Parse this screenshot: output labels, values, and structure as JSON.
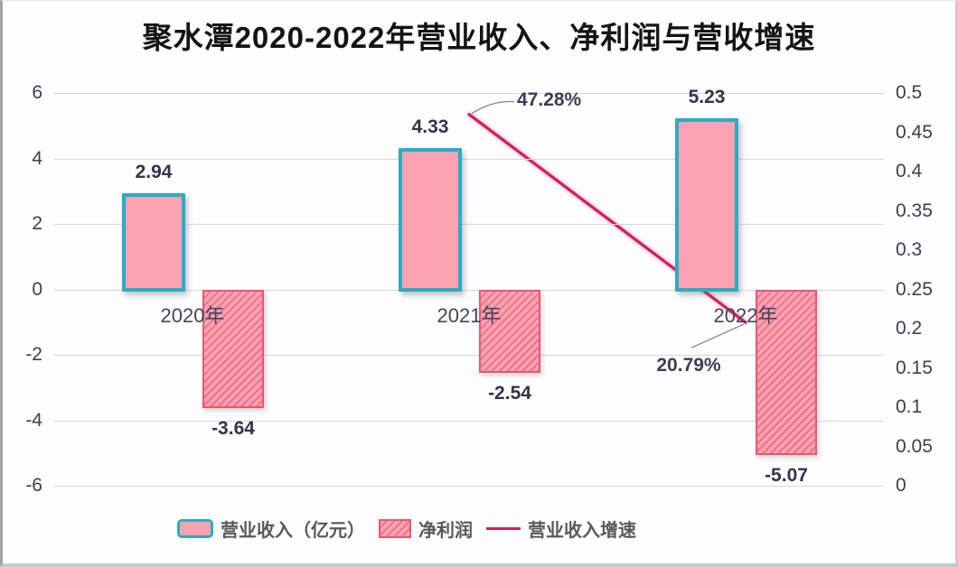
{
  "chart_data": {
    "type": "combo-bar-line",
    "title": "聚水潭2020-2022年营业收入、净利润与营收增速",
    "categories": [
      "2020年",
      "2021年",
      "2022年"
    ],
    "series": [
      {
        "name": "营业收入（亿元）",
        "type": "bar",
        "axis": "left",
        "values": [
          2.94,
          4.33,
          5.23
        ],
        "labels": [
          "2.94",
          "4.33",
          "5.23"
        ],
        "fill": "#f9a2b2",
        "stroke": "#2bacc4"
      },
      {
        "name": "净利润",
        "type": "bar",
        "axis": "left",
        "values": [
          -3.64,
          -2.54,
          -5.07
        ],
        "labels": [
          "-3.64",
          "-2.54",
          "-5.07"
        ],
        "fill": "#f9a2b2",
        "hatch_color": "#ee7188",
        "stroke": "#e65873"
      },
      {
        "name": "营业收入增速",
        "type": "line",
        "axis": "right",
        "color": "#ce2160",
        "points": [
          {
            "category_index": 1,
            "value": 0.4728,
            "label": "47.28%"
          },
          {
            "category_index": 2,
            "value": 0.2079,
            "label": "20.79%"
          }
        ]
      }
    ],
    "left_axis": {
      "min": -6,
      "max": 6,
      "ticks": [
        "6",
        "4",
        "2",
        "0",
        "-2",
        "-4",
        "-6"
      ]
    },
    "right_axis": {
      "min": 0,
      "max": 0.5,
      "ticks": [
        "0.5",
        "0.45",
        "0.4",
        "0.35",
        "0.3",
        "0.25",
        "0.2",
        "0.15",
        "0.1",
        "0.05",
        "0"
      ]
    },
    "grid": true,
    "legend_position": "bottom",
    "legend_items": [
      "营业收入（亿元）",
      "净利润",
      "营业收入增速"
    ]
  },
  "colors": {
    "grid": "#d6d6db",
    "tick_text": "#3d3d56",
    "value_label_text": "#33334a",
    "legend_text": "#595959",
    "leader_line": "#8b8b97"
  }
}
